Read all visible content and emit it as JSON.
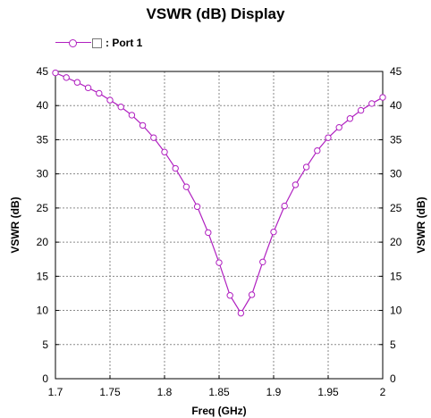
{
  "chart_data": {
    "type": "line",
    "title": "VSWR (dB) Display",
    "xlabel": "Freq (GHz)",
    "ylabel": "VSWR (dB)",
    "y2label": "VSWR (dB)",
    "xlim": [
      1.7,
      2.0
    ],
    "ylim": [
      0,
      45
    ],
    "x_ticks": [
      "1.7",
      "1.75",
      "1.8",
      "1.85",
      "1.9",
      "1.95",
      "2"
    ],
    "y_ticks": [
      "0",
      "5",
      "10",
      "15",
      "20",
      "25",
      "30",
      "35",
      "40",
      "45"
    ],
    "grid": true,
    "legend_position": "top-left",
    "series": [
      {
        "name": ": Port 1",
        "color": "#b020c0",
        "marker": "circle",
        "x": [
          1.7,
          1.71,
          1.72,
          1.73,
          1.74,
          1.75,
          1.76,
          1.77,
          1.78,
          1.79,
          1.8,
          1.81,
          1.82,
          1.83,
          1.84,
          1.85,
          1.86,
          1.87,
          1.88,
          1.89,
          1.9,
          1.91,
          1.92,
          1.93,
          1.94,
          1.95,
          1.96,
          1.97,
          1.98,
          1.99,
          2.0
        ],
        "y": [
          44.8,
          44.1,
          43.4,
          42.6,
          41.8,
          40.8,
          39.8,
          38.6,
          37.1,
          35.3,
          33.2,
          30.8,
          28.1,
          25.2,
          21.4,
          17.0,
          12.2,
          9.6,
          12.3,
          17.1,
          21.5,
          25.3,
          28.4,
          31.0,
          33.4,
          35.3,
          36.8,
          38.1,
          39.3,
          40.3,
          41.2
        ]
      }
    ]
  }
}
